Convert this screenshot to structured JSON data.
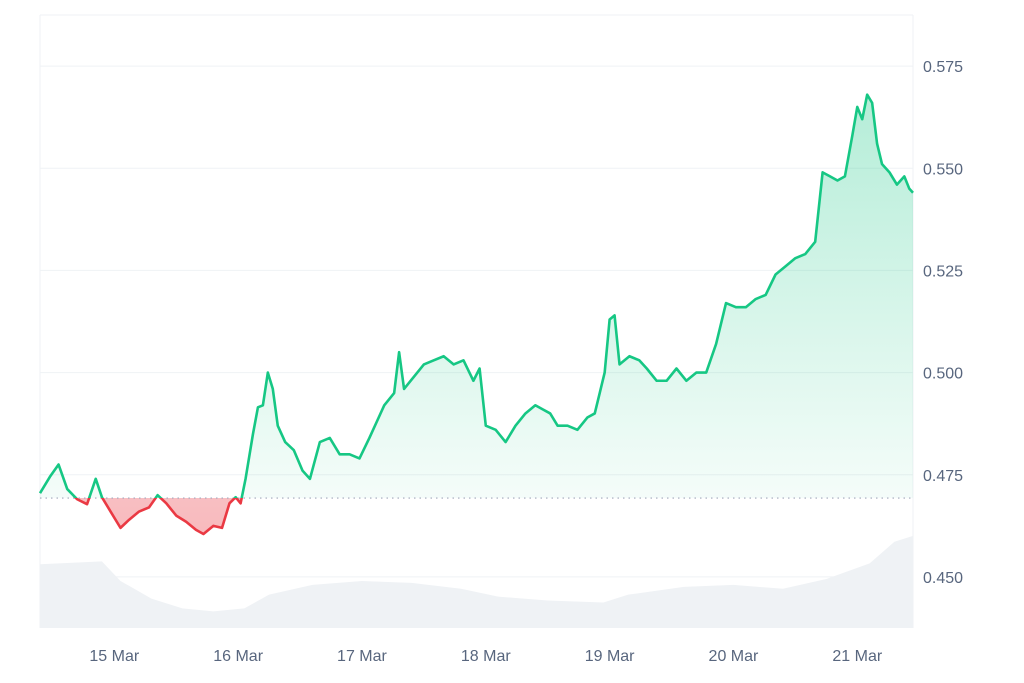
{
  "chart_data": {
    "type": "line",
    "title": "",
    "xlabel": "",
    "ylabel": "",
    "ylim": [
      0.4375,
      0.5875
    ],
    "y_ticks": [
      0.45,
      0.475,
      0.5,
      0.525,
      0.55,
      0.575
    ],
    "y_tick_labels": [
      "0.450",
      "0.475",
      "0.500",
      "0.525",
      "0.550",
      "0.575"
    ],
    "x_ticks": [
      {
        "label": "15 Mar",
        "day": 15.0
      },
      {
        "label": "16 Mar",
        "day": 16.0
      },
      {
        "label": "17 Mar",
        "day": 17.0
      },
      {
        "label": "18 Mar",
        "day": 18.0
      },
      {
        "label": "19 Mar",
        "day": 19.0
      },
      {
        "label": "20 Mar",
        "day": 20.0
      },
      {
        "label": "21 Mar",
        "day": 21.0
      }
    ],
    "xlim_days": [
      14.4,
      21.45
    ],
    "baseline": 0.4693,
    "colors": {
      "up_line": "#16c784",
      "down_line": "#ea3943",
      "up_fill": "#16c784",
      "down_fill": "#ea3943",
      "grid": "#eff2f5",
      "baseline": "#a1a7bb",
      "volume": "#eff2f5",
      "axis_text": "#58667e"
    },
    "grid": true,
    "series": [
      {
        "values_by_day": [
          [
            14.4,
            0.4705
          ],
          [
            14.48,
            0.4745
          ],
          [
            14.55,
            0.4775
          ],
          [
            14.62,
            0.4715
          ],
          [
            14.7,
            0.469
          ],
          [
            14.78,
            0.4678
          ],
          [
            14.85,
            0.474
          ],
          [
            14.9,
            0.4695
          ],
          [
            14.97,
            0.466
          ],
          [
            15.05,
            0.462
          ],
          [
            15.12,
            0.464
          ],
          [
            15.2,
            0.466
          ],
          [
            15.28,
            0.467
          ],
          [
            15.35,
            0.47
          ],
          [
            15.42,
            0.468
          ],
          [
            15.5,
            0.465
          ],
          [
            15.58,
            0.4635
          ],
          [
            15.66,
            0.4615
          ],
          [
            15.72,
            0.4605
          ],
          [
            15.8,
            0.4625
          ],
          [
            15.87,
            0.462
          ],
          [
            15.93,
            0.468
          ],
          [
            15.98,
            0.4695
          ],
          [
            16.02,
            0.468
          ],
          [
            16.06,
            0.474
          ],
          [
            16.12,
            0.485
          ],
          [
            16.16,
            0.4915
          ],
          [
            16.2,
            0.492
          ],
          [
            16.24,
            0.5
          ],
          [
            16.28,
            0.496
          ],
          [
            16.32,
            0.487
          ],
          [
            16.38,
            0.483
          ],
          [
            16.45,
            0.481
          ],
          [
            16.52,
            0.476
          ],
          [
            16.58,
            0.474
          ],
          [
            16.66,
            0.483
          ],
          [
            16.74,
            0.484
          ],
          [
            16.82,
            0.48
          ],
          [
            16.9,
            0.48
          ],
          [
            16.98,
            0.479
          ],
          [
            17.06,
            0.484
          ],
          [
            17.12,
            0.488
          ],
          [
            17.18,
            0.492
          ],
          [
            17.26,
            0.495
          ],
          [
            17.3,
            0.505
          ],
          [
            17.34,
            0.496
          ],
          [
            17.42,
            0.499
          ],
          [
            17.5,
            0.502
          ],
          [
            17.58,
            0.503
          ],
          [
            17.66,
            0.504
          ],
          [
            17.74,
            0.502
          ],
          [
            17.82,
            0.503
          ],
          [
            17.9,
            0.498
          ],
          [
            17.95,
            0.501
          ],
          [
            18.0,
            0.487
          ],
          [
            18.08,
            0.486
          ],
          [
            18.16,
            0.483
          ],
          [
            18.24,
            0.487
          ],
          [
            18.32,
            0.49
          ],
          [
            18.4,
            0.492
          ],
          [
            18.46,
            0.491
          ],
          [
            18.52,
            0.49
          ],
          [
            18.58,
            0.487
          ],
          [
            18.66,
            0.487
          ],
          [
            18.74,
            0.486
          ],
          [
            18.82,
            0.489
          ],
          [
            18.88,
            0.49
          ],
          [
            18.92,
            0.495
          ],
          [
            18.96,
            0.5
          ],
          [
            19.0,
            0.513
          ],
          [
            19.04,
            0.514
          ],
          [
            19.08,
            0.502
          ],
          [
            19.16,
            0.504
          ],
          [
            19.24,
            0.503
          ],
          [
            19.3,
            0.501
          ],
          [
            19.38,
            0.498
          ],
          [
            19.46,
            0.498
          ],
          [
            19.54,
            0.501
          ],
          [
            19.62,
            0.498
          ],
          [
            19.7,
            0.5
          ],
          [
            19.78,
            0.5
          ],
          [
            19.86,
            0.507
          ],
          [
            19.94,
            0.517
          ],
          [
            20.02,
            0.516
          ],
          [
            20.1,
            0.516
          ],
          [
            20.18,
            0.518
          ],
          [
            20.26,
            0.519
          ],
          [
            20.34,
            0.524
          ],
          [
            20.42,
            0.526
          ],
          [
            20.5,
            0.528
          ],
          [
            20.58,
            0.529
          ],
          [
            20.66,
            0.532
          ],
          [
            20.72,
            0.549
          ],
          [
            20.78,
            0.548
          ],
          [
            20.84,
            0.547
          ],
          [
            20.9,
            0.548
          ],
          [
            20.96,
            0.558
          ],
          [
            21.0,
            0.565
          ],
          [
            21.04,
            0.562
          ],
          [
            21.08,
            0.568
          ],
          [
            21.12,
            0.566
          ],
          [
            21.16,
            0.556
          ],
          [
            21.2,
            0.551
          ],
          [
            21.26,
            0.549
          ],
          [
            21.32,
            0.546
          ],
          [
            21.38,
            0.548
          ],
          [
            21.42,
            0.545
          ],
          [
            21.45,
            0.544
          ]
        ]
      }
    ],
    "volume_by_day": [
      [
        14.4,
        0.65
      ],
      [
        14.9,
        0.68
      ],
      [
        15.05,
        0.48
      ],
      [
        15.3,
        0.3
      ],
      [
        15.55,
        0.2
      ],
      [
        15.8,
        0.17
      ],
      [
        16.05,
        0.2
      ],
      [
        16.25,
        0.34
      ],
      [
        16.6,
        0.44
      ],
      [
        17.0,
        0.48
      ],
      [
        17.4,
        0.46
      ],
      [
        17.8,
        0.4
      ],
      [
        18.1,
        0.32
      ],
      [
        18.5,
        0.28
      ],
      [
        18.95,
        0.26
      ],
      [
        19.15,
        0.34
      ],
      [
        19.6,
        0.42
      ],
      [
        20.0,
        0.44
      ],
      [
        20.4,
        0.4
      ],
      [
        20.75,
        0.5
      ],
      [
        21.1,
        0.66
      ],
      [
        21.3,
        0.88
      ],
      [
        21.45,
        0.94
      ]
    ]
  }
}
